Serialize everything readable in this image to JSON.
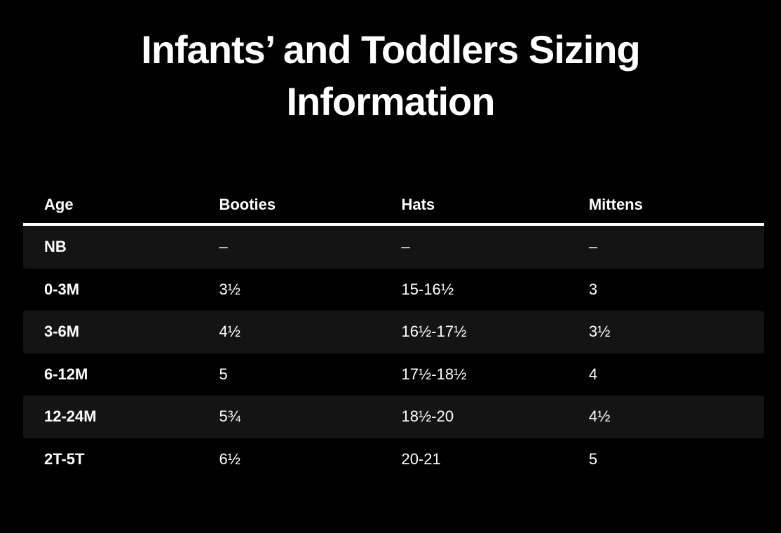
{
  "colors": {
    "background": "#000000",
    "text": "#ffffff",
    "stripe": "#141414",
    "divider": "#ffffff"
  },
  "title": {
    "line1": "Infants’ and Toddlers Sizing",
    "line2": "Information"
  },
  "table": {
    "columns": [
      "Age",
      "Booties",
      "Hats",
      "Mittens"
    ],
    "rows": [
      {
        "age": "NB",
        "booties": "–",
        "hats": "–",
        "mittens": "–"
      },
      {
        "age": "0-3M",
        "booties": "3½",
        "hats": "15-16½",
        "mittens": "3"
      },
      {
        "age": "3-6M",
        "booties": "4½",
        "hats": "16½-17½",
        "mittens": "3½"
      },
      {
        "age": "6-12M",
        "booties": "5",
        "hats": "17½-18½",
        "mittens": "4"
      },
      {
        "age": "12-24M",
        "booties": "5¾",
        "hats": "18½-20",
        "mittens": "4½"
      },
      {
        "age": "2T-5T",
        "booties": "6½",
        "hats": "20-21",
        "mittens": "5"
      }
    ]
  }
}
